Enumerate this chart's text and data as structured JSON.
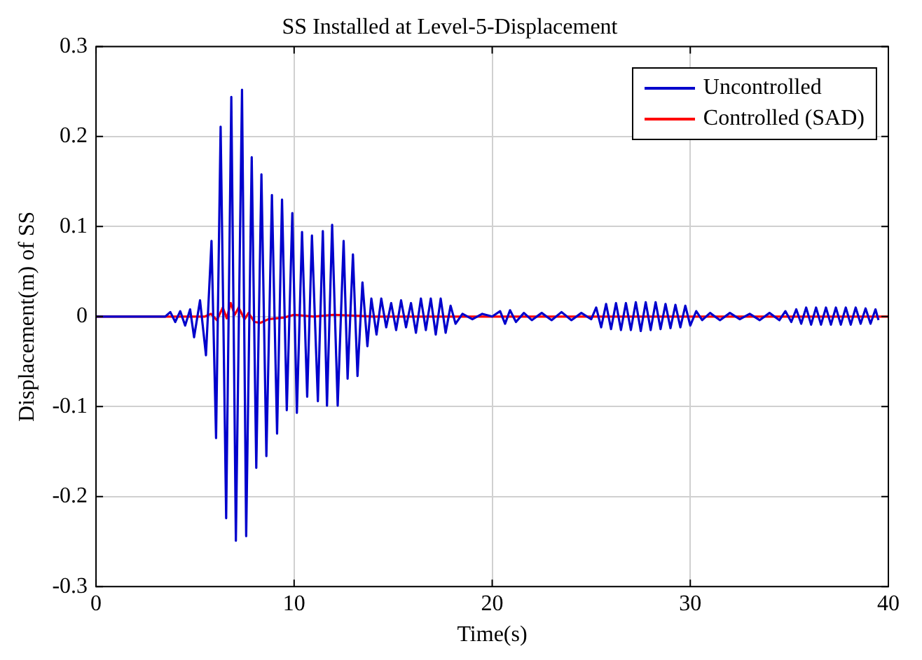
{
  "chart_data": {
    "type": "line",
    "title": "SS Installed at Level-5-Displacement",
    "xlabel": "Time(s)",
    "ylabel": "Displacement(m) of SS",
    "xlim": [
      0,
      40
    ],
    "xticks": [
      0,
      10,
      20,
      30,
      40
    ],
    "ylim": [
      -0.3,
      0.3
    ],
    "yticks": [
      -0.3,
      -0.2,
      -0.1,
      0,
      0.1,
      0.2,
      0.3
    ],
    "grid": true,
    "legend": "top right",
    "line_style": "solid",
    "marker": "none",
    "series": [
      {
        "name": "Uncontrolled",
        "color": "#0000cc",
        "x": [
          0,
          3.5,
          3.75,
          4.0,
          4.25,
          4.5,
          4.75,
          4.95,
          5.25,
          5.55,
          5.83,
          6.06,
          6.29,
          6.57,
          6.83,
          7.06,
          7.37,
          7.58,
          7.86,
          8.09,
          8.35,
          8.6,
          8.88,
          9.14,
          9.39,
          9.63,
          9.91,
          10.14,
          10.4,
          10.66,
          10.9,
          11.2,
          11.45,
          11.66,
          11.92,
          12.2,
          12.5,
          12.7,
          12.97,
          13.2,
          13.45,
          13.7,
          13.9,
          14.16,
          14.4,
          14.65,
          14.9,
          15.15,
          15.4,
          15.65,
          15.9,
          16.15,
          16.4,
          16.65,
          16.9,
          17.15,
          17.4,
          17.65,
          17.9,
          18.15,
          18.5,
          19,
          19.5,
          20,
          20.4,
          20.65,
          20.9,
          21.2,
          21.6,
          22,
          22.5,
          23,
          23.5,
          24,
          24.5,
          25,
          25.25,
          25.5,
          25.75,
          26,
          26.25,
          26.5,
          26.75,
          27,
          27.25,
          27.5,
          27.75,
          28,
          28.25,
          28.5,
          28.75,
          29,
          29.25,
          29.5,
          29.75,
          30,
          30.3,
          30.6,
          31,
          31.5,
          32,
          32.5,
          33,
          33.5,
          34,
          34.5,
          34.8,
          35.1,
          35.35,
          35.6,
          35.85,
          36.1,
          36.35,
          36.6,
          36.85,
          37.1,
          37.35,
          37.6,
          37.85,
          38.1,
          38.35,
          38.6,
          38.85,
          39.1,
          39.35,
          39.5
        ],
        "values": [
          0,
          0,
          0.005,
          -0.006,
          0.006,
          -0.01,
          0.008,
          -0.023,
          0.018,
          -0.043,
          0.084,
          -0.135,
          0.211,
          -0.224,
          0.244,
          -0.249,
          0.252,
          -0.244,
          0.177,
          -0.168,
          0.158,
          -0.155,
          0.135,
          -0.13,
          0.13,
          -0.104,
          0.115,
          -0.107,
          0.094,
          -0.089,
          0.09,
          -0.094,
          0.095,
          -0.099,
          0.102,
          -0.099,
          0.084,
          -0.069,
          0.069,
          -0.066,
          0.038,
          -0.033,
          0.02,
          -0.02,
          0.02,
          -0.012,
          0.015,
          -0.015,
          0.018,
          -0.012,
          0.015,
          -0.018,
          0.02,
          -0.015,
          0.02,
          -0.02,
          0.02,
          -0.018,
          0.012,
          -0.008,
          0.003,
          -0.003,
          0.003,
          0,
          0.006,
          -0.008,
          0.007,
          -0.006,
          0.004,
          -0.004,
          0.004,
          -0.004,
          0.005,
          -0.004,
          0.004,
          -0.003,
          0.01,
          -0.012,
          0.014,
          -0.014,
          0.015,
          -0.015,
          0.015,
          -0.015,
          0.016,
          -0.016,
          0.016,
          -0.015,
          0.016,
          -0.014,
          0.014,
          -0.013,
          0.013,
          -0.012,
          0.012,
          -0.01,
          0.006,
          -0.004,
          0.004,
          -0.004,
          0.004,
          -0.003,
          0.003,
          -0.004,
          0.004,
          -0.004,
          0.006,
          -0.006,
          0.008,
          -0.008,
          0.01,
          -0.009,
          0.01,
          -0.009,
          0.01,
          -0.009,
          0.01,
          -0.009,
          0.01,
          -0.009,
          0.01,
          -0.008,
          0.009,
          -0.008,
          0.008,
          -0.004
        ]
      },
      {
        "name": "Controlled (SAD)",
        "color": "#ff0000",
        "x": [
          0,
          5.5,
          5.8,
          6.1,
          6.4,
          6.6,
          6.8,
          7.0,
          7.2,
          7.5,
          7.7,
          8.0,
          8.3,
          8.7,
          9.5,
          10,
          11,
          12,
          13,
          14,
          20,
          40
        ],
        "values": [
          0,
          0,
          0.003,
          -0.004,
          0.01,
          -0.002,
          0.015,
          0.002,
          0.01,
          -0.003,
          0.004,
          -0.006,
          -0.007,
          -0.003,
          -0.001,
          0.002,
          0,
          0.002,
          0.001,
          0,
          0,
          0
        ]
      }
    ]
  }
}
